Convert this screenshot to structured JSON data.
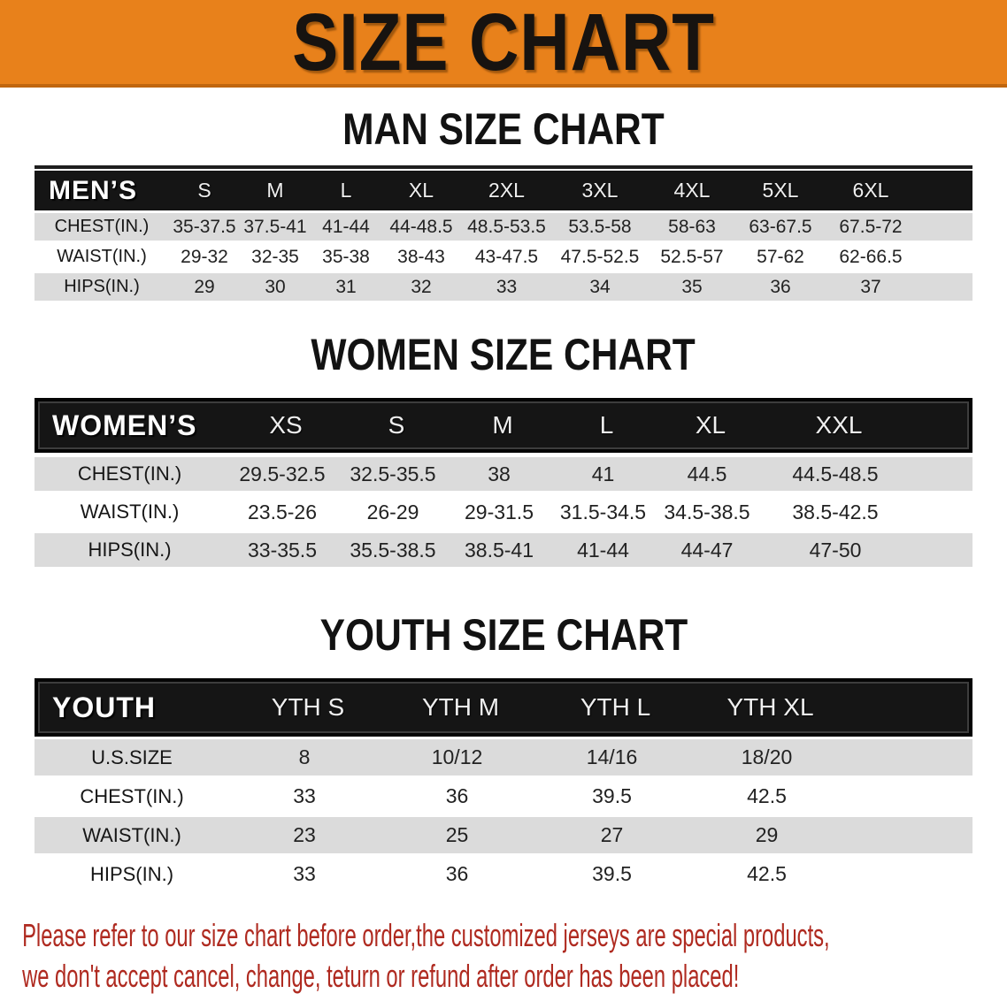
{
  "banner": {
    "title": "SIZE CHART",
    "background_color": "#E8811B",
    "text_color": "#171310"
  },
  "sections": [
    {
      "id": "men",
      "heading": "MAN SIZE CHART",
      "label": "MEN’S",
      "columns": [
        "S",
        "M",
        "L",
        "XL",
        "2XL",
        "3XL",
        "4XL",
        "5XL",
        "6XL"
      ],
      "rows": [
        {
          "label": "CHEST(IN.)",
          "values": [
            "35-37.5",
            "37.5-41",
            "41-44",
            "44-48.5",
            "48.5-53.5",
            "53.5-58",
            "58-63",
            "63-67.5",
            "67.5-72"
          ]
        },
        {
          "label": "WAIST(IN.)",
          "values": [
            "29-32",
            "32-35",
            "35-38",
            "38-43",
            "43-47.5",
            "47.5-52.5",
            "52.5-57",
            "57-62",
            "62-66.5"
          ]
        },
        {
          "label": "HIPS(IN.)",
          "values": [
            "29",
            "30",
            "31",
            "32",
            "33",
            "34",
            "35",
            "36",
            "37"
          ]
        }
      ]
    },
    {
      "id": "women",
      "heading": "WOMEN SIZE CHART",
      "label": "WOMEN’S",
      "columns": [
        "XS",
        "S",
        "M",
        "L",
        "XL",
        "XXL"
      ],
      "rows": [
        {
          "label": "CHEST(IN.)",
          "values": [
            "29.5-32.5",
            "32.5-35.5",
            "38",
            "41",
            "44.5",
            "44.5-48.5"
          ]
        },
        {
          "label": "WAIST(IN.)",
          "values": [
            "23.5-26",
            "26-29",
            "29-31.5",
            "31.5-34.5",
            "34.5-38.5",
            "38.5-42.5"
          ]
        },
        {
          "label": "HIPS(IN.)",
          "values": [
            "33-35.5",
            "35.5-38.5",
            "38.5-41",
            "41-44",
            "44-47",
            "47-50"
          ]
        }
      ]
    },
    {
      "id": "youth",
      "heading": "YOUTH SIZE CHART",
      "label": "YOUTH",
      "columns": [
        "YTH S",
        "YTH M",
        "YTH L",
        "YTH XL"
      ],
      "rows": [
        {
          "label": "U.S.SIZE",
          "values": [
            "8",
            "10/12",
            "14/16",
            "18/20"
          ]
        },
        {
          "label": "CHEST(IN.)",
          "values": [
            "33",
            "36",
            "39.5",
            "42.5"
          ]
        },
        {
          "label": "WAIST(IN.)",
          "values": [
            "23",
            "25",
            "27",
            "29"
          ]
        },
        {
          "label": "HIPS(IN.)",
          "values": [
            "33",
            "36",
            "39.5",
            "42.5"
          ]
        }
      ]
    }
  ],
  "disclaimer": {
    "line1": "Please refer to our size chart before order,the customized jerseys are special products,",
    "line2": "we don't accept cancel, change, teturn or refund after order has been placed!",
    "color": "#AF2A20"
  },
  "style": {
    "header_bar_color": "#151515",
    "stripe_row_color": "#DBDBDB"
  }
}
